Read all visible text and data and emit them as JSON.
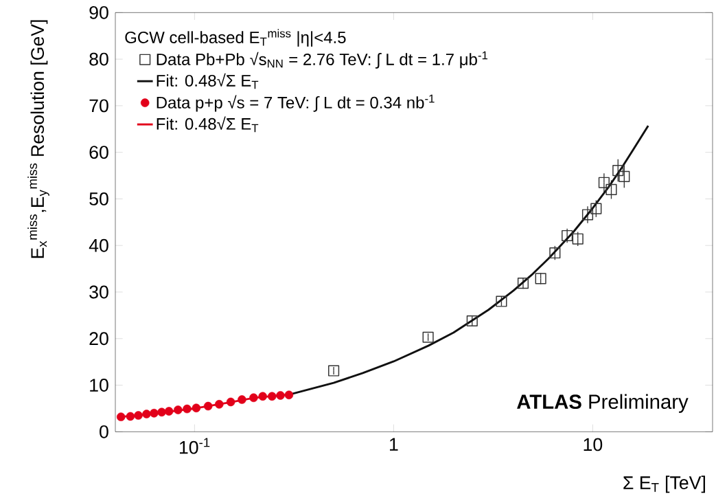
{
  "chart_data": {
    "type": "scatter",
    "xlabel": "Σ E$_{T}$  [TeV]",
    "ylabel": "E$_{x}$$^{miss}$,E$_{y}$$^{miss}$ Resolution [GeV]",
    "legend_title": "GCW cell-based E$_{T}$$^{miss}$ |η|<4.5",
    "log": "x",
    "xlim": [
      0.04,
      40
    ],
    "ylim": [
      0,
      90
    ],
    "xticks": [
      {
        "value": 0.1,
        "label": "10$^{-1}$"
      },
      1,
      10
    ],
    "yticks": [
      0,
      10,
      20,
      30,
      40,
      50,
      60,
      70,
      80,
      90
    ],
    "legend": "top left",
    "series": [
      {
        "name": "Data Pb+Pb √s$_{NN}$ = 2.76 TeV: ∫ L dt = 1.7 μb$^{-1}$",
        "marker": "square",
        "color": "#333333",
        "x": [
          0.5,
          1.49,
          2.48,
          3.48,
          4.47,
          5.48,
          6.46,
          7.44,
          8.42,
          9.43,
          10.4,
          11.4,
          12.4,
          13.4,
          14.4
        ],
        "values": [
          13.1,
          20.3,
          23.8,
          28.0,
          31.9,
          32.9,
          38.4,
          42.1,
          41.4,
          46.6,
          47.9,
          53.5,
          52.0,
          56.1,
          54.8
        ],
        "errors": [
          0.8,
          0.8,
          1,
          1,
          1.2,
          1.2,
          1.5,
          1.5,
          1.5,
          1.8,
          1.8,
          2,
          2,
          2.4,
          2.4
        ]
      },
      {
        "name": "Fit: 0.48√Σ E$_{T}$",
        "type": "line",
        "marker": "none",
        "color": "#111111",
        "x": [
          0.3,
          0.5,
          0.7,
          1,
          1.5,
          2,
          3,
          4,
          5,
          6,
          8,
          10,
          12,
          14,
          16,
          19
        ],
        "values": [
          8.0,
          10.5,
          12.6,
          15.1,
          18.5,
          21.3,
          26.2,
          30.3,
          33.9,
          37.2,
          42.9,
          48.0,
          52.5,
          56.7,
          60.6,
          65.7
        ]
      },
      {
        "name": "Data p+p √s = 7 TeV: ∫ L dt = 0.34 nb$^{-1}$",
        "marker": "circle",
        "color": "#e2001a",
        "x": [
          0.0427,
          0.0476,
          0.0522,
          0.0574,
          0.0626,
          0.0684,
          0.0744,
          0.0826,
          0.0917,
          0.102,
          0.117,
          0.133,
          0.152,
          0.173,
          0.198,
          0.22,
          0.245,
          0.27,
          0.298
        ],
        "values": [
          3.2,
          3.3,
          3.5,
          3.8,
          4.0,
          4.2,
          4.4,
          4.7,
          4.9,
          5.1,
          5.5,
          5.9,
          6.4,
          6.9,
          7.3,
          7.6,
          7.6,
          7.8,
          7.9
        ]
      },
      {
        "name": "Fit: 0.48√Σ E$_{T}$",
        "type": "line",
        "marker": "none",
        "color": "#e2001a",
        "x": [
          0.0427,
          0.06,
          0.1,
          0.15,
          0.2,
          0.3
        ],
        "values": [
          3.2,
          3.8,
          5.0,
          6.3,
          7.3,
          8.0
        ]
      }
    ],
    "annotations": [
      "**ATLAS** Preliminary"
    ]
  }
}
